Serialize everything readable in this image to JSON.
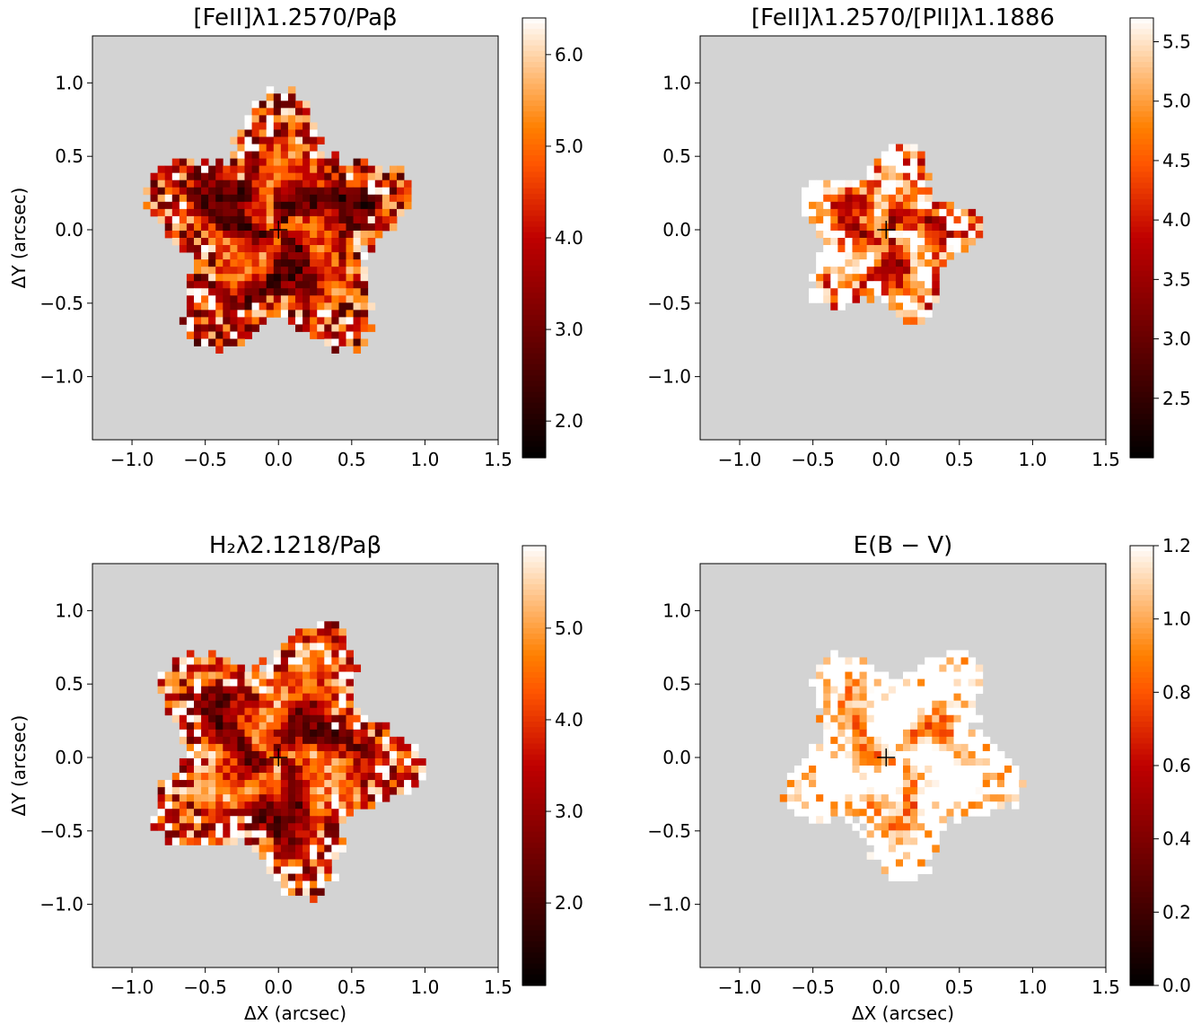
{
  "chart_data": [
    {
      "type": "heatmap",
      "title": "[FeII]λ1.2570/Paβ",
      "xlabel": "",
      "ylabel": "ΔY (arcsec)",
      "xlim": [
        -1.27,
        1.5
      ],
      "ylim": [
        -1.43,
        1.32
      ],
      "xticks": [
        {
          "v": -1.0,
          "label": "−1.0"
        },
        {
          "v": -0.5,
          "label": "−0.5"
        },
        {
          "v": 0.0,
          "label": "0.0"
        },
        {
          "v": 0.5,
          "label": "0.5"
        },
        {
          "v": 1.0,
          "label": "1.0"
        },
        {
          "v": 1.5,
          "label": "1.5"
        }
      ],
      "yticks": [
        {
          "v": 1.0,
          "label": "1.0"
        },
        {
          "v": 0.5,
          "label": "0.5"
        },
        {
          "v": 0.0,
          "label": "0.0"
        },
        {
          "v": -0.5,
          "label": "−0.5"
        },
        {
          "v": -1.0,
          "label": "−1.0"
        }
      ],
      "colorbar": {
        "min": 1.6,
        "max": 6.4,
        "colormap": "gist_heat",
        "ticks": [
          {
            "v": 2.0,
            "label": "2.0"
          },
          {
            "v": 3.0,
            "label": "3.0"
          },
          {
            "v": 4.0,
            "label": "4.0"
          },
          {
            "v": 5.0,
            "label": "5.0"
          },
          {
            "v": 6.0,
            "label": "6.0"
          }
        ]
      },
      "marker": {
        "x": 0.0,
        "y": 0.0,
        "symbol": "+"
      },
      "emission_region": {
        "cx": 0.0,
        "cy": 0.0,
        "radius": 0.95
      },
      "typical_value_near_center": 3.8
    },
    {
      "type": "heatmap",
      "title": "[FeII]λ1.2570/[PII]λ1.1886",
      "xlabel": "",
      "ylabel": "",
      "xlim": [
        -1.27,
        1.5
      ],
      "ylim": [
        -1.43,
        1.32
      ],
      "xticks": [
        {
          "v": -1.0,
          "label": "−1.0"
        },
        {
          "v": -0.5,
          "label": "−0.5"
        },
        {
          "v": 0.0,
          "label": "0.0"
        },
        {
          "v": 0.5,
          "label": "0.5"
        },
        {
          "v": 1.0,
          "label": "1.0"
        },
        {
          "v": 1.5,
          "label": "1.5"
        }
      ],
      "yticks": [
        {
          "v": 1.0,
          "label": "1.0"
        },
        {
          "v": 0.5,
          "label": "0.5"
        },
        {
          "v": 0.0,
          "label": "0.0"
        },
        {
          "v": -0.5,
          "label": "−0.5"
        },
        {
          "v": -1.0,
          "label": "−1.0"
        }
      ],
      "colorbar": {
        "min": 2.0,
        "max": 5.7,
        "colormap": "gist_heat",
        "ticks": [
          {
            "v": 2.5,
            "label": "2.5"
          },
          {
            "v": 3.0,
            "label": "3.0"
          },
          {
            "v": 3.5,
            "label": "3.5"
          },
          {
            "v": 4.0,
            "label": "4.0"
          },
          {
            "v": 4.5,
            "label": "4.5"
          },
          {
            "v": 5.0,
            "label": "5.0"
          },
          {
            "v": 5.5,
            "label": "5.5"
          }
        ]
      },
      "marker": {
        "x": 0.0,
        "y": 0.0,
        "symbol": "+"
      },
      "emission_region": {
        "cx": 0.0,
        "cy": -0.05,
        "radius": 0.65
      },
      "typical_value_near_center": 4.6
    },
    {
      "type": "heatmap",
      "title": "H₂λ2.1218/Paβ",
      "xlabel": "ΔX (arcsec)",
      "ylabel": "ΔY (arcsec)",
      "xlim": [
        -1.27,
        1.5
      ],
      "ylim": [
        -1.43,
        1.32
      ],
      "xticks": [
        {
          "v": -1.0,
          "label": "−1.0"
        },
        {
          "v": -0.5,
          "label": "−0.5"
        },
        {
          "v": 0.0,
          "label": "0.0"
        },
        {
          "v": 0.5,
          "label": "0.5"
        },
        {
          "v": 1.0,
          "label": "1.0"
        },
        {
          "v": 1.5,
          "label": "1.5"
        }
      ],
      "yticks": [
        {
          "v": 1.0,
          "label": "1.0"
        },
        {
          "v": 0.5,
          "label": "0.5"
        },
        {
          "v": 0.0,
          "label": "0.0"
        },
        {
          "v": -0.5,
          "label": "−0.5"
        },
        {
          "v": -1.0,
          "label": "−1.0"
        }
      ],
      "colorbar": {
        "min": 1.1,
        "max": 5.9,
        "colormap": "gist_heat",
        "ticks": [
          {
            "v": 2.0,
            "label": "2.0"
          },
          {
            "v": 3.0,
            "label": "3.0"
          },
          {
            "v": 4.0,
            "label": "4.0"
          },
          {
            "v": 5.0,
            "label": "5.0"
          }
        ]
      },
      "marker": {
        "x": 0.0,
        "y": 0.0,
        "symbol": "+"
      },
      "emission_region": {
        "cx": 0.0,
        "cy": 0.0,
        "radius": 0.98
      },
      "typical_value_near_center": 3.6
    },
    {
      "type": "heatmap",
      "title": "E(B − V)",
      "xlabel": "ΔX (arcsec)",
      "ylabel": "",
      "xlim": [
        -1.27,
        1.5
      ],
      "ylim": [
        -1.43,
        1.32
      ],
      "xticks": [
        {
          "v": -1.0,
          "label": "−1.0"
        },
        {
          "v": -0.5,
          "label": "−0.5"
        },
        {
          "v": 0.0,
          "label": "0.0"
        },
        {
          "v": 0.5,
          "label": "0.5"
        },
        {
          "v": 1.0,
          "label": "1.0"
        },
        {
          "v": 1.5,
          "label": "1.5"
        }
      ],
      "yticks": [
        {
          "v": 1.0,
          "label": "1.0"
        },
        {
          "v": 0.5,
          "label": "0.5"
        },
        {
          "v": 0.0,
          "label": "0.0"
        },
        {
          "v": -0.5,
          "label": "−0.5"
        },
        {
          "v": -1.0,
          "label": "−1.0"
        }
      ],
      "colorbar": {
        "min": 0.0,
        "max": 1.2,
        "colormap": "gist_heat",
        "ticks": [
          {
            "v": 0.0,
            "label": "0.0"
          },
          {
            "v": 0.2,
            "label": "0.2"
          },
          {
            "v": 0.4,
            "label": "0.4"
          },
          {
            "v": 0.6,
            "label": "0.6"
          },
          {
            "v": 0.8,
            "label": "0.8"
          },
          {
            "v": 1.0,
            "label": "1.0"
          },
          {
            "v": 1.2,
            "label": "1.2"
          }
        ]
      },
      "marker": {
        "x": 0.0,
        "y": 0.0,
        "symbol": "+"
      },
      "emission_region": {
        "cx": 0.1,
        "cy": 0.0,
        "radius": 0.85
      },
      "typical_value_near_center": 1.2
    }
  ],
  "colors": {
    "masked": "#d3d3d3",
    "frame": "#000000",
    "marker": "#000000"
  }
}
